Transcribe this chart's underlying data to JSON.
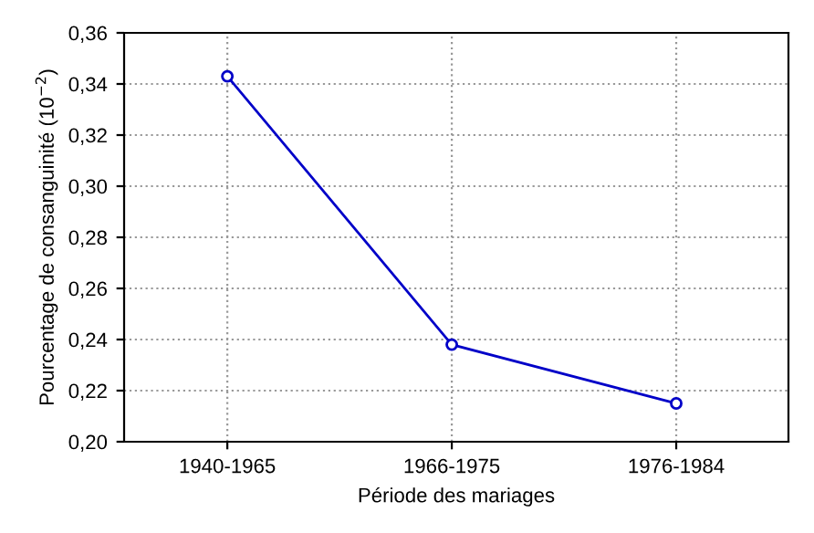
{
  "chart_data": {
    "type": "line",
    "xlabel": "Période des mariages",
    "ylabel": "Pourcentage de consanguinité (10$^{−2}$)",
    "categories": [
      "1940-1965",
      "1966-1975",
      "1976-1984"
    ],
    "series": [
      {
        "color": "#0000c8",
        "values": [
          0.343,
          0.238,
          0.215
        ]
      }
    ],
    "ylim": [
      0.2,
      0.36
    ],
    "yticks": [
      {
        "value": 0.2,
        "label": "0,20"
      },
      {
        "value": 0.22,
        "label": "0,22"
      },
      {
        "value": 0.24,
        "label": "0,24"
      },
      {
        "value": 0.26,
        "label": "0,26"
      },
      {
        "value": 0.28,
        "label": "0,28"
      },
      {
        "value": 0.3,
        "label": "0,30"
      },
      {
        "value": 0.32,
        "label": "0,32"
      },
      {
        "value": 0.34,
        "label": "0,34"
      },
      {
        "value": 0.36,
        "label": "0,36"
      }
    ],
    "grid": true,
    "marker": "circle",
    "line_style": "solid"
  }
}
